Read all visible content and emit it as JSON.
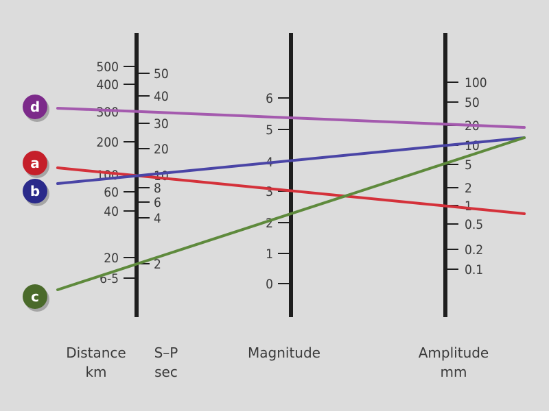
{
  "scales": {
    "distance": {
      "labels": [
        "500",
        "400",
        "300",
        "200",
        "100",
        "60",
        "40",
        "20",
        "6-5"
      ],
      "caption_line1": "Distance",
      "caption_line2": "km"
    },
    "sp": {
      "labels": [
        "50",
        "40",
        "30",
        "20",
        "10",
        "8",
        "6",
        "4",
        "2"
      ],
      "caption_line1": "S–P",
      "caption_line2": "sec"
    },
    "magnitude": {
      "labels": [
        "6",
        "5",
        "4",
        "3",
        "2",
        "1",
        "0"
      ],
      "caption_line1": "Magnitude",
      "caption_line2": ""
    },
    "amplitude": {
      "labels": [
        "100",
        "50",
        "20",
        "10",
        "5",
        "2",
        "1",
        "0.5",
        "0.2",
        "0.1"
      ],
      "caption_line1": "Amplitude",
      "caption_line2": "mm"
    }
  },
  "lines": [
    {
      "id": "d",
      "label": "d",
      "color": "#a45aae",
      "circle_color": "#7c2a8a"
    },
    {
      "id": "a",
      "label": "a",
      "color": "#d4313a",
      "circle_color": "#c51f2a"
    },
    {
      "id": "b",
      "label": "b",
      "color": "#4a45a6",
      "circle_color": "#2a2a8a"
    },
    {
      "id": "c",
      "label": "c",
      "color": "#5e8a3c",
      "circle_color": "#4a6a2a"
    }
  ]
}
